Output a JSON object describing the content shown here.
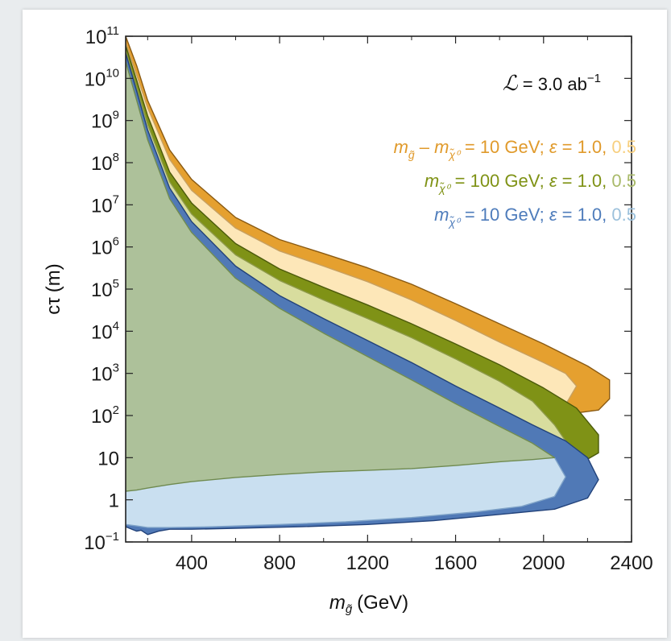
{
  "chart_data": {
    "type": "area",
    "title": "",
    "xlabel": {
      "symbol": "m",
      "subscript": "g̃",
      "unit": "(GeV)"
    },
    "ylabel": {
      "symbol": "cτ",
      "unit": "(m)"
    },
    "xlim": [
      100,
      2400
    ],
    "ylim": [
      0.1,
      100000000000
    ],
    "yscale": "log",
    "x_ticks": [
      "400",
      "800",
      "1200",
      "1600",
      "2000",
      "2400"
    ],
    "x_tick_values": [
      400,
      800,
      1200,
      1600,
      2000,
      2400
    ],
    "y_ticks": [
      {
        "base": "10",
        "exp": "11",
        "value": 100000000000
      },
      {
        "base": "10",
        "exp": "10",
        "value": 10000000000
      },
      {
        "base": "10",
        "exp": "9",
        "value": 1000000000
      },
      {
        "base": "10",
        "exp": "8",
        "value": 100000000
      },
      {
        "base": "10",
        "exp": "7",
        "value": 10000000
      },
      {
        "base": "10",
        "exp": "6",
        "value": 1000000
      },
      {
        "base": "10",
        "exp": "5",
        "value": 100000
      },
      {
        "base": "10",
        "exp": "4",
        "value": 10000
      },
      {
        "base": "10",
        "exp": "3",
        "value": 1000
      },
      {
        "base": "10",
        "exp": "2",
        "value": 100
      },
      {
        "base": "10",
        "exp": "",
        "value": 10
      },
      {
        "base": "1",
        "exp": "",
        "value": 1
      },
      {
        "base": "10",
        "exp": "−1",
        "value": 0.1
      }
    ],
    "luminosity": {
      "symbol": "ℒ",
      "value": " = 3.0 ab",
      "exp": "−1"
    },
    "legend": [
      {
        "symbol": "m",
        "sub": "g̃",
        "minus": " – ",
        "symbol2": "m",
        "sub2": "χ̃⁰",
        "text": " = 10 GeV; ",
        "eps": "ε",
        "eps_text": " = 1.0, ",
        "alt": "0.5",
        "color": "#e09a2b",
        "alt_color": "#f7cf7f"
      },
      {
        "symbol": "m",
        "sub": "χ̃⁰",
        "text": " = 100 GeV; ",
        "eps": "ε",
        "eps_text": " = 1.0, ",
        "alt": "0.5",
        "color": "#7f9215",
        "alt_color": "#a9ba6a"
      },
      {
        "symbol": "m",
        "sub": "χ̃⁰",
        "text": " = 10 GeV; ",
        "eps": "ε",
        "eps_text": " = 1.0, ",
        "alt": "0.5",
        "color": "#4e7cbb",
        "alt_color": "#9cc1dc"
      }
    ],
    "regions": [
      {
        "id": "orange-eps-1.0",
        "fill": "#e5a02f",
        "stroke": "#8a5a12",
        "boundary": [
          [
            100,
            100000000000.0
          ],
          [
            150,
            20000000000.0
          ],
          [
            200,
            3000000000.0
          ],
          [
            300,
            200000000.0
          ],
          [
            400,
            40000000.0
          ],
          [
            600,
            5000000.0
          ],
          [
            800,
            1500000.0
          ],
          [
            1000,
            700000.0
          ],
          [
            1200,
            320000.0
          ],
          [
            1400,
            130000.0
          ],
          [
            1600,
            45000.0
          ],
          [
            1800,
            15000.0
          ],
          [
            2000,
            5000.0
          ],
          [
            2200,
            1500.0
          ],
          [
            2300,
            700.0
          ],
          [
            2300,
            250.0
          ],
          [
            2250,
            135.0
          ],
          [
            2150,
            115.0
          ],
          [
            2100,
            100.0
          ],
          [
            2000,
            90.0
          ],
          [
            1800,
            65.0
          ],
          [
            1600,
            45.0
          ],
          [
            1400,
            34.0
          ],
          [
            1200,
            25.0
          ],
          [
            1000,
            18.0
          ],
          [
            800,
            12.0
          ],
          [
            600,
            8
          ],
          [
            400,
            4.5
          ],
          [
            300,
            3
          ],
          [
            200,
            1.8
          ],
          [
            150,
            1.6
          ],
          [
            100,
            1.5
          ]
        ]
      },
      {
        "id": "orange-eps-0.5",
        "fill": "#fde7b8",
        "stroke": "#c8a060",
        "boundary": [
          [
            100,
            70000000000.0
          ],
          [
            150,
            12000000000.0
          ],
          [
            200,
            2000000000.0
          ],
          [
            300,
            120000000.0
          ],
          [
            400,
            22000000.0
          ],
          [
            600,
            2800000.0
          ],
          [
            800,
            800000.0
          ],
          [
            1000,
            350000.0
          ],
          [
            1200,
            150000.0
          ],
          [
            1400,
            55000.0
          ],
          [
            1600,
            18000.0
          ],
          [
            1800,
            5500.0
          ],
          [
            2000,
            1800.0
          ],
          [
            2100,
            1000.0
          ],
          [
            2150,
            500.0
          ],
          [
            2100,
            180.0
          ],
          [
            2000,
            120.0
          ],
          [
            1800,
            75.0
          ],
          [
            1600,
            52.0
          ],
          [
            1400,
            38.0
          ],
          [
            1200,
            28.0
          ],
          [
            1000,
            20.0
          ],
          [
            800,
            13.5
          ],
          [
            600,
            9
          ],
          [
            400,
            5
          ],
          [
            300,
            3.2
          ],
          [
            200,
            1.9
          ],
          [
            150,
            1.65
          ],
          [
            100,
            1.55
          ]
        ]
      },
      {
        "id": "green-eps-1.0",
        "fill": "#7f9216",
        "stroke": "#4b5a0a",
        "boundary": [
          [
            100,
            60000000000.0
          ],
          [
            150,
            9000000000.0
          ],
          [
            200,
            1300000000.0
          ],
          [
            300,
            60000000.0
          ],
          [
            400,
            11000000.0
          ],
          [
            600,
            1200000.0
          ],
          [
            800,
            300000.0
          ],
          [
            1000,
            110000.0
          ],
          [
            1200,
            42000.0
          ],
          [
            1400,
            15000.0
          ],
          [
            1600,
            5000.0
          ],
          [
            1800,
            1600.0
          ],
          [
            2000,
            450.0
          ],
          [
            2150,
            150.0
          ],
          [
            2250,
            35.0
          ],
          [
            2250,
            13.0
          ],
          [
            2150,
            6.5
          ],
          [
            2000,
            5.3
          ],
          [
            1800,
            4.6
          ],
          [
            1600,
            3.9
          ],
          [
            1400,
            3.4
          ],
          [
            1200,
            3
          ],
          [
            1000,
            2.6
          ],
          [
            800,
            2.3
          ],
          [
            600,
            2.1
          ],
          [
            400,
            1.9
          ],
          [
            300,
            1.8
          ],
          [
            200,
            1.7
          ],
          [
            150,
            1.65
          ],
          [
            100,
            1.6
          ]
        ]
      },
      {
        "id": "green-eps-0.5",
        "fill": "#d8dd9e",
        "stroke": "#8e9a4a",
        "boundary": [
          [
            100,
            45000000000.0
          ],
          [
            150,
            6000000000.0
          ],
          [
            200,
            800000000.0
          ],
          [
            300,
            35000000.0
          ],
          [
            400,
            6000000.0
          ],
          [
            600,
            650000.0
          ],
          [
            800,
            160000.0
          ],
          [
            1000,
            55000.0
          ],
          [
            1200,
            20000.0
          ],
          [
            1400,
            7000.0
          ],
          [
            1600,
            2200.0
          ],
          [
            1800,
            650.0
          ],
          [
            1950,
            220.0
          ],
          [
            2050,
            60.0
          ],
          [
            2100,
            25.0
          ],
          [
            2050,
            11.0
          ],
          [
            1900,
            7.5
          ],
          [
            1800,
            6.2
          ],
          [
            1600,
            4.8
          ],
          [
            1400,
            4
          ],
          [
            1200,
            3.5
          ],
          [
            1000,
            3.1
          ],
          [
            800,
            2.7
          ],
          [
            600,
            2.4
          ],
          [
            400,
            2.1
          ],
          [
            300,
            1.95
          ],
          [
            200,
            1.8
          ],
          [
            150,
            1.7
          ],
          [
            100,
            1.65
          ]
        ]
      },
      {
        "id": "blue-eps-1.0",
        "fill": "#5079b6",
        "stroke": "#22427a",
        "boundary": [
          [
            100,
            40000000000.0
          ],
          [
            150,
            5000000000.0
          ],
          [
            200,
            600000000.0
          ],
          [
            300,
            25000000.0
          ],
          [
            400,
            4000000.0
          ],
          [
            600,
            350000.0
          ],
          [
            800,
            70000.0
          ],
          [
            1000,
            20000.0
          ],
          [
            1200,
            6000.0
          ],
          [
            1400,
            1800.0
          ],
          [
            1600,
            500.0
          ],
          [
            1800,
            150.0
          ],
          [
            1950,
            60.0
          ],
          [
            2100,
            25.0
          ],
          [
            2200,
            10.0
          ],
          [
            2250,
            3
          ],
          [
            2200,
            1.1
          ],
          [
            2050,
            0.6
          ],
          [
            1800,
            0.45
          ],
          [
            1500,
            0.32
          ],
          [
            1200,
            0.26
          ],
          [
            900,
            0.23
          ],
          [
            600,
            0.21
          ],
          [
            400,
            0.2
          ],
          [
            300,
            0.2
          ],
          [
            250,
            0.18
          ],
          [
            200,
            0.15
          ],
          [
            170,
            0.19
          ],
          [
            150,
            0.18
          ],
          [
            100,
            0.23
          ]
        ]
      },
      {
        "id": "blue-eps-0.5",
        "fill": "#c9dff0",
        "stroke": "#7fa3c8",
        "boundary": [
          [
            100,
            25000000000.0
          ],
          [
            150,
            3000000000.0
          ],
          [
            200,
            350000000.0
          ],
          [
            300,
            14000000.0
          ],
          [
            400,
            2200000.0
          ],
          [
            600,
            180000.0
          ],
          [
            800,
            35000.0
          ],
          [
            1000,
            9000.0
          ],
          [
            1200,
            2500.0
          ],
          [
            1400,
            700.0
          ],
          [
            1600,
            190.0
          ],
          [
            1800,
            55.0
          ],
          [
            1950,
            22.0
          ],
          [
            2050,
            10.0
          ],
          [
            2100,
            3.5
          ],
          [
            2050,
            1.2
          ],
          [
            1900,
            0.7
          ],
          [
            1700,
            0.52
          ],
          [
            1400,
            0.38
          ],
          [
            1100,
            0.3
          ],
          [
            800,
            0.26
          ],
          [
            500,
            0.23
          ],
          [
            300,
            0.22
          ],
          [
            200,
            0.22
          ],
          [
            150,
            0.24
          ],
          [
            100,
            0.26
          ]
        ]
      },
      {
        "id": "overlap-eps-1.0",
        "fill": "#adc19a",
        "stroke": "#6f8a4f",
        "boundary": [
          [
            100,
            25000000000.0
          ],
          [
            150,
            3000000000.0
          ],
          [
            200,
            350000000.0
          ],
          [
            300,
            14000000.0
          ],
          [
            400,
            2200000.0
          ],
          [
            600,
            180000.0
          ],
          [
            800,
            35000.0
          ],
          [
            1000,
            9000.0
          ],
          [
            1200,
            2500.0
          ],
          [
            1400,
            700.0
          ],
          [
            1600,
            190.0
          ],
          [
            1800,
            55.0
          ],
          [
            1950,
            22.0
          ],
          [
            2050,
            10.0
          ],
          [
            1950,
            9
          ],
          [
            1800,
            8
          ],
          [
            1600,
            6.5
          ],
          [
            1400,
            5.5
          ],
          [
            1200,
            5
          ],
          [
            1000,
            4.6
          ],
          [
            800,
            4
          ],
          [
            600,
            3.4
          ],
          [
            400,
            2.7
          ],
          [
            300,
            2.3
          ],
          [
            200,
            1.9
          ],
          [
            150,
            1.7
          ],
          [
            100,
            1.6
          ]
        ]
      }
    ]
  }
}
